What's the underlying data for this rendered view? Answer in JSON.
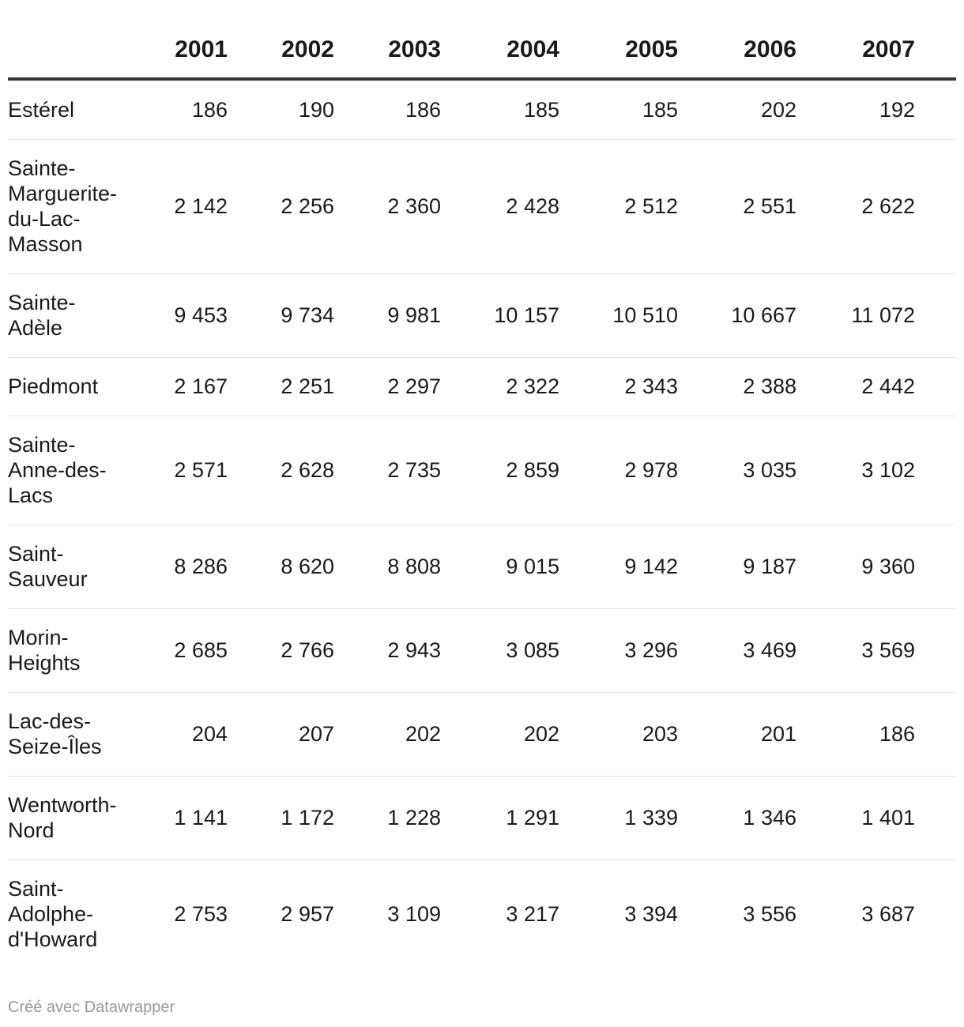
{
  "chart_data": {
    "type": "table",
    "columns": [
      "",
      "2001",
      "2002",
      "2003",
      "2004",
      "2005",
      "2006",
      "2007"
    ],
    "rows": [
      {
        "name_lines": [
          "Estérel"
        ],
        "values": [
          "186",
          "190",
          "186",
          "185",
          "185",
          "202",
          "192"
        ],
        "height": 0
      },
      {
        "name_lines": [
          "Sainte-",
          "Marguerite-",
          "du-Lac-",
          "Masson"
        ],
        "values": [
          "2 142",
          "2 256",
          "2 360",
          "2 428",
          "2 512",
          "2 551",
          "2 622"
        ]
      },
      {
        "name_lines": [
          "Sainte-",
          "Adèle"
        ],
        "values": [
          "9 453",
          "9 734",
          "9 981",
          "10 157",
          "10 510",
          "10 667",
          "11 072"
        ]
      },
      {
        "name_lines": [
          "Piedmont"
        ],
        "values": [
          "2 167",
          "2 251",
          "2 297",
          "2 322",
          "2 343",
          "2 388",
          "2 442"
        ]
      },
      {
        "name_lines": [
          "Sainte-",
          "Anne-des-",
          "Lacs"
        ],
        "values": [
          "2 571",
          "2 628",
          "2 735",
          "2 859",
          "2 978",
          "3 035",
          "3 102"
        ]
      },
      {
        "name_lines": [
          "Saint-",
          "Sauveur"
        ],
        "values": [
          "8 286",
          "8 620",
          "8 808",
          "9 015",
          "9 142",
          "9 187",
          "9 360"
        ]
      },
      {
        "name_lines": [
          "Morin-",
          "Heights"
        ],
        "values": [
          "2 685",
          "2 766",
          "2 943",
          "3 085",
          "3 296",
          "3 469",
          "3 569"
        ]
      },
      {
        "name_lines": [
          "Lac-des-",
          "Seize-Îles"
        ],
        "values": [
          "204",
          "207",
          "202",
          "202",
          "203",
          "201",
          "186"
        ]
      },
      {
        "name_lines": [
          "Wentworth-",
          "Nord"
        ],
        "values": [
          "1 141",
          "1 172",
          "1 228",
          "1 291",
          "1 339",
          "1 346",
          "1 401"
        ]
      },
      {
        "name_lines": [
          "Saint-",
          "Adolphe-",
          "d'Howard"
        ],
        "values": [
          "2 753",
          "2 957",
          "3 109",
          "3 217",
          "3 394",
          "3 556",
          "3 687"
        ]
      }
    ]
  },
  "footer": {
    "credit": "Créé avec Datawrapper"
  }
}
